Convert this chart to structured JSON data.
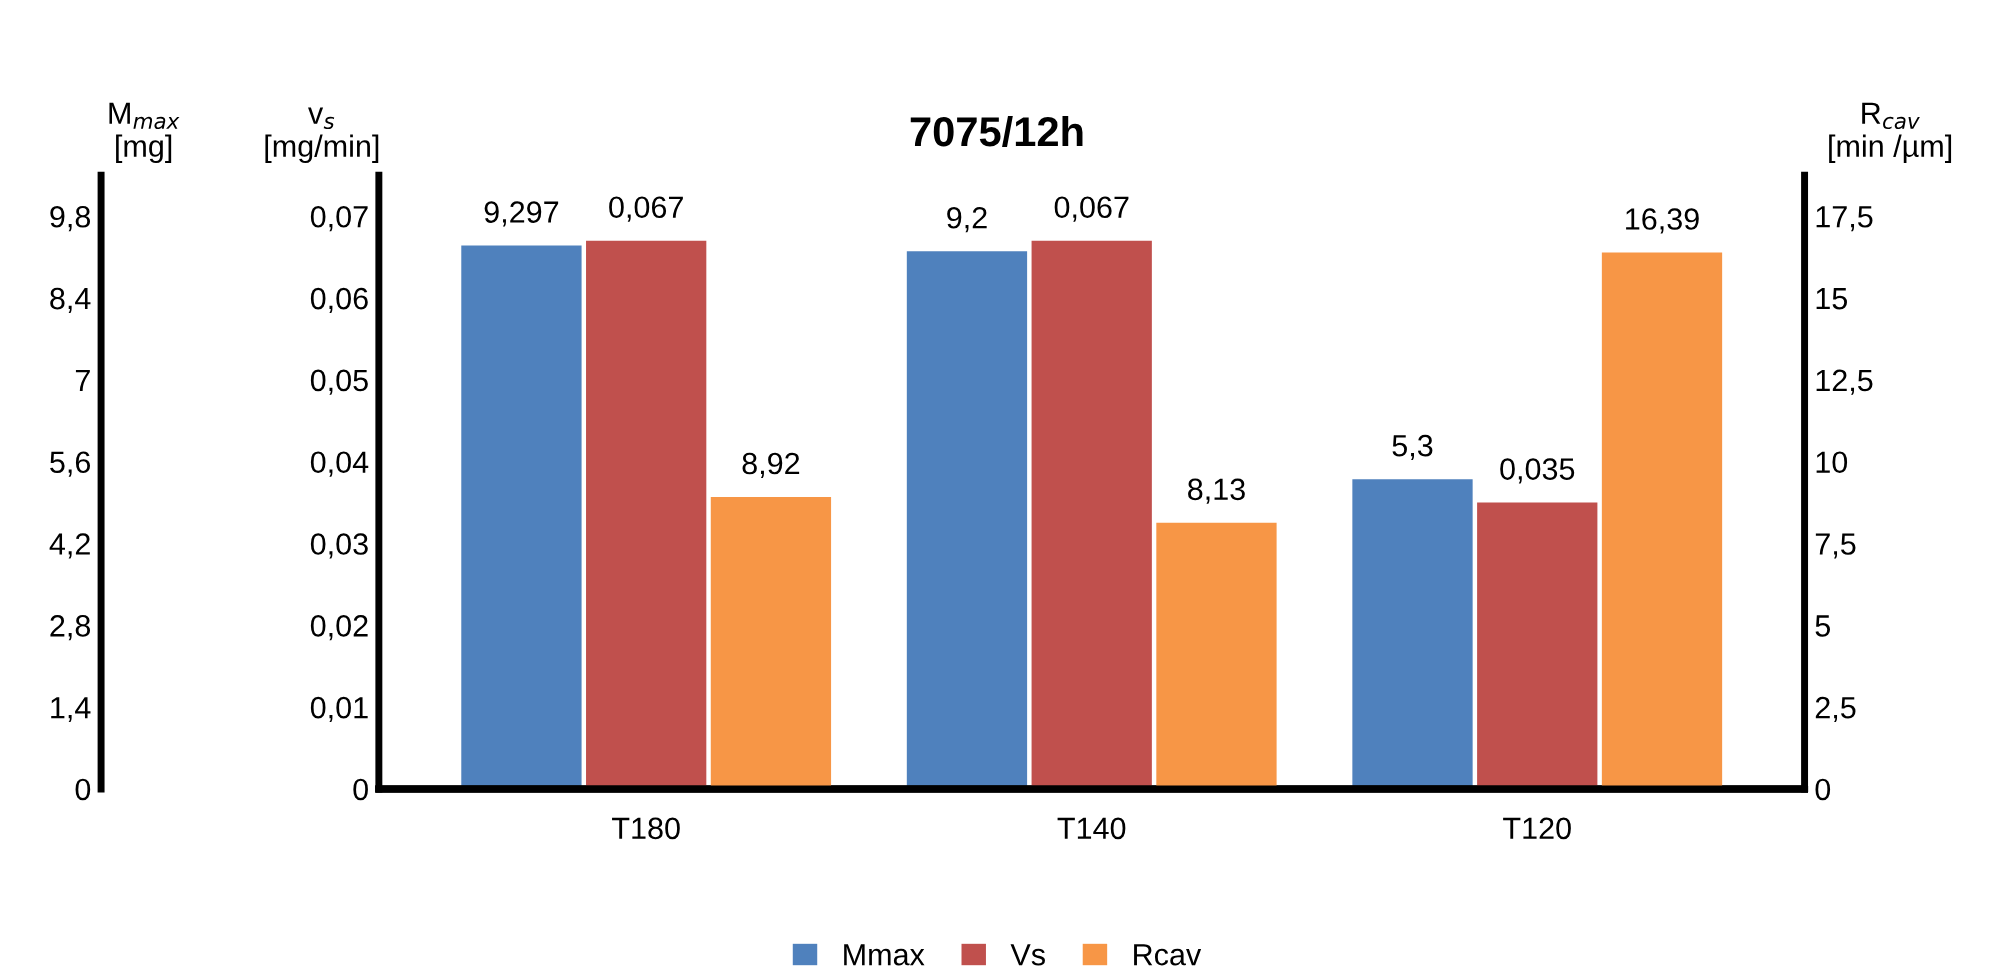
{
  "chart_data": {
    "type": "bar",
    "title": "7075/12h",
    "categories": [
      "T180",
      "T140",
      "T120"
    ],
    "series": [
      {
        "name": "Mmax",
        "color": "#4f81bd",
        "axis": "y",
        "values": [
          9.297,
          9.2,
          5.3
        ],
        "value_labels": [
          "9,297",
          "9,2",
          "5,3"
        ]
      },
      {
        "name": "Vs",
        "color": "#c0504d",
        "axis": "y2",
        "values": [
          0.067,
          0.067,
          0.035
        ],
        "value_labels": [
          "0,067",
          "0,067",
          "0,035"
        ]
      },
      {
        "name": "Rcav",
        "color": "#f79646",
        "axis": "y3",
        "values": [
          8.92,
          8.13,
          16.39
        ],
        "value_labels": [
          "8,92",
          "8,13",
          "16,39"
        ]
      }
    ],
    "ylabel": "M$_{max}$\n[mg]",
    "y2label": "v$_{s}$\n[mg/min]",
    "y3label": "R$_{cav}$\n[min /µm]",
    "ylim": [
      0,
      10.5
    ],
    "yticks": [
      0,
      {
        "value": 1.4,
        "label": "1,4"
      },
      {
        "value": 2.8,
        "label": "2,8"
      },
      {
        "value": 4.2,
        "label": "4,2"
      },
      {
        "value": 5.6,
        "label": "5,6"
      },
      7,
      {
        "value": 8.4,
        "label": "8,4"
      },
      {
        "value": 9.8,
        "label": "9,8"
      }
    ],
    "y2lim": [
      0,
      0.075
    ],
    "y2ticks": [
      0,
      {
        "value": 0.01,
        "label": "0,01"
      },
      {
        "value": 0.02,
        "label": "0,02"
      },
      {
        "value": 0.03,
        "label": "0,03"
      },
      {
        "value": 0.04,
        "label": "0,04"
      },
      {
        "value": 0.05,
        "label": "0,05"
      },
      {
        "value": 0.06,
        "label": "0,06"
      },
      {
        "value": 0.07,
        "label": "0,07"
      }
    ],
    "y3lim": [
      0,
      18.75
    ],
    "y3ticks": [
      0,
      {
        "value": 2.5,
        "label": "2,5"
      },
      5,
      {
        "value": 7.5,
        "label": "7,5"
      },
      10,
      {
        "value": 12.5,
        "label": "12,5"
      },
      15,
      {
        "value": 17.5,
        "label": "17,5"
      }
    ],
    "grid": false,
    "legend": "bottom"
  }
}
